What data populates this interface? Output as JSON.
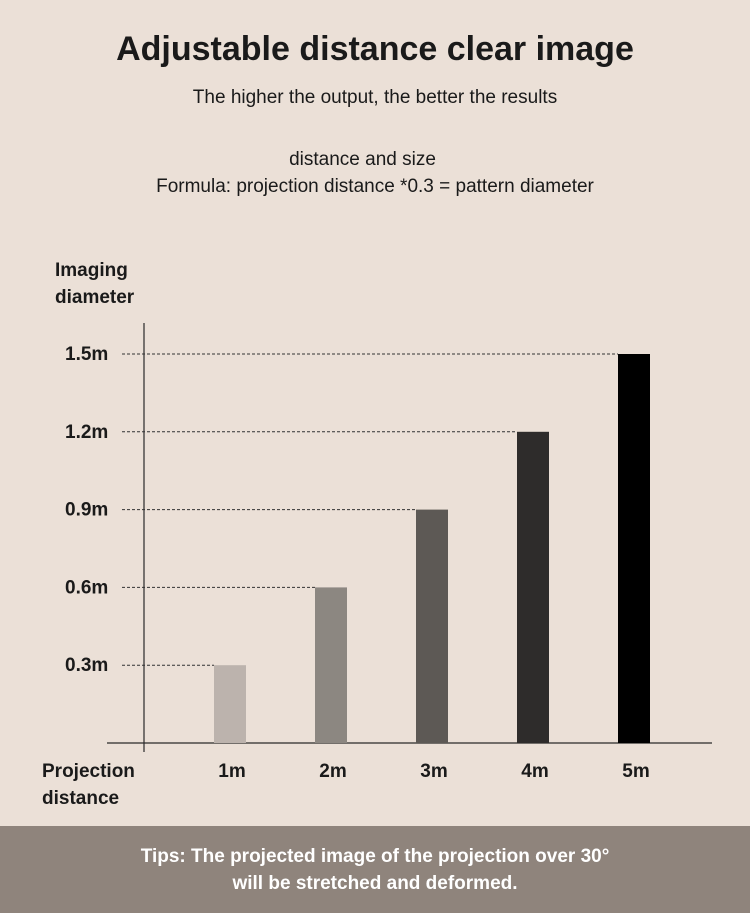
{
  "header": {
    "title": "Adjustable distance clear image",
    "subtitle": "The higher the output, the better the results",
    "note_line1": "distance and size",
    "note_line2": "Formula: projection distance *0.3 = pattern diameter"
  },
  "chart_data": {
    "type": "bar",
    "categories": [
      "1m",
      "2m",
      "3m",
      "4m",
      "5m"
    ],
    "values": [
      0.3,
      0.6,
      0.9,
      1.2,
      1.5
    ],
    "value_labels": [
      "0.3m",
      "0.6m",
      "0.9m",
      "1.2m",
      "1.5m"
    ],
    "ylabel_lines": [
      "Imaging",
      "diameter"
    ],
    "xlabel_lines": [
      "Projection",
      "distance"
    ],
    "ylim": [
      0,
      1.5
    ],
    "bar_colors": [
      "#bcb3ad",
      "#8c8781",
      "#5d5955",
      "#2e2c2b",
      "#000000"
    ],
    "grid": false,
    "reference_lines": "dashed"
  },
  "footer": {
    "line1": "Tips: The projected image of the projection over 30°",
    "line2": "will be stretched and deformed."
  }
}
